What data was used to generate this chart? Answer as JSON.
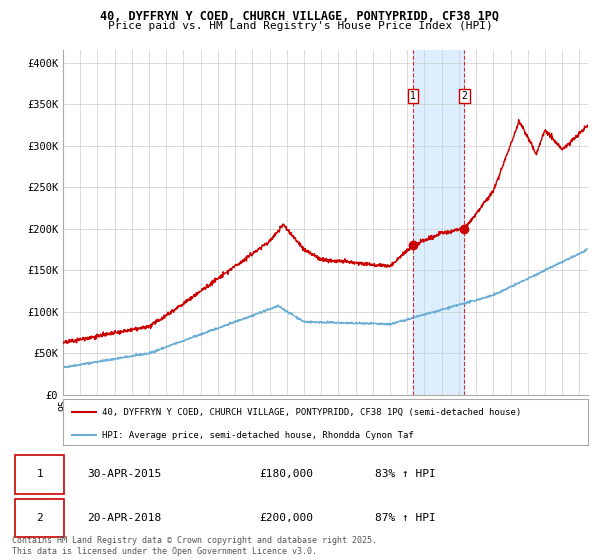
{
  "title_line1": "40, DYFFRYN Y COED, CHURCH VILLAGE, PONTYPRIDD, CF38 1PQ",
  "title_line2": "Price paid vs. HM Land Registry's House Price Index (HPI)",
  "ylabel_ticks": [
    "£0",
    "£50K",
    "£100K",
    "£150K",
    "£200K",
    "£250K",
    "£300K",
    "£350K",
    "£400K"
  ],
  "ytick_vals": [
    0,
    50000,
    100000,
    150000,
    200000,
    250000,
    300000,
    350000,
    400000
  ],
  "ylim": [
    0,
    415000
  ],
  "xlim_start": 1995.0,
  "xlim_end": 2025.5,
  "hpi_color": "#6baed6",
  "price_color": "#cc0000",
  "background_color": "#ffffff",
  "grid_color": "#cccccc",
  "sale1_date": 2015.33,
  "sale1_price": 180000,
  "sale2_date": 2018.31,
  "sale2_price": 200000,
  "sale1_label": "1",
  "sale2_label": "2",
  "legend_line1": "40, DYFFRYN Y COED, CHURCH VILLAGE, PONTYPRIDD, CF38 1PQ (semi-detached house)",
  "legend_line2": "HPI: Average price, semi-detached house, Rhondda Cynon Taf",
  "table_row1": [
    "1",
    "30-APR-2015",
    "£180,000",
    "83% ↑ HPI"
  ],
  "table_row2": [
    "2",
    "20-APR-2018",
    "£200,000",
    "87% ↑ HPI"
  ],
  "footer": "Contains HM Land Registry data © Crown copyright and database right 2025.\nThis data is licensed under the Open Government Licence v3.0.",
  "shade_color": "#ddeeff"
}
